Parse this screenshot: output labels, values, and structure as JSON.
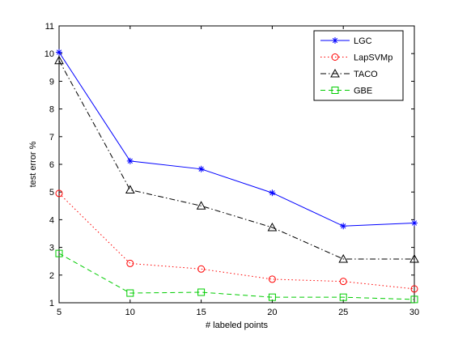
{
  "chart_data": {
    "type": "line",
    "title": "",
    "xlabel": "# labeled points",
    "ylabel": "test error %",
    "x": [
      5,
      10,
      15,
      20,
      25,
      30
    ],
    "xlim": [
      5,
      30
    ],
    "ylim": [
      1,
      11
    ],
    "xticks": [
      5,
      10,
      15,
      20,
      25,
      30
    ],
    "yticks": [
      1,
      2,
      3,
      4,
      5,
      6,
      7,
      8,
      9,
      10,
      11
    ],
    "grid": false,
    "legend_position": "top-right",
    "series": [
      {
        "name": "LGC",
        "values": [
          10.05,
          6.12,
          5.83,
          4.97,
          3.77,
          3.88
        ],
        "color": "#0000ff",
        "dash": "solid",
        "marker": "star"
      },
      {
        "name": "LapSVMp",
        "values": [
          4.95,
          2.42,
          2.22,
          1.85,
          1.77,
          1.5
        ],
        "color": "#ff0000",
        "dash": "dotted",
        "marker": "circle"
      },
      {
        "name": "TACO",
        "values": [
          9.75,
          5.08,
          4.5,
          3.72,
          2.58,
          2.58
        ],
        "color": "#000000",
        "dash": "dashdot",
        "marker": "triangle"
      },
      {
        "name": "GBE",
        "values": [
          2.78,
          1.35,
          1.38,
          1.2,
          1.2,
          1.12
        ],
        "color": "#00cc00",
        "dash": "dashed",
        "marker": "square"
      }
    ]
  }
}
